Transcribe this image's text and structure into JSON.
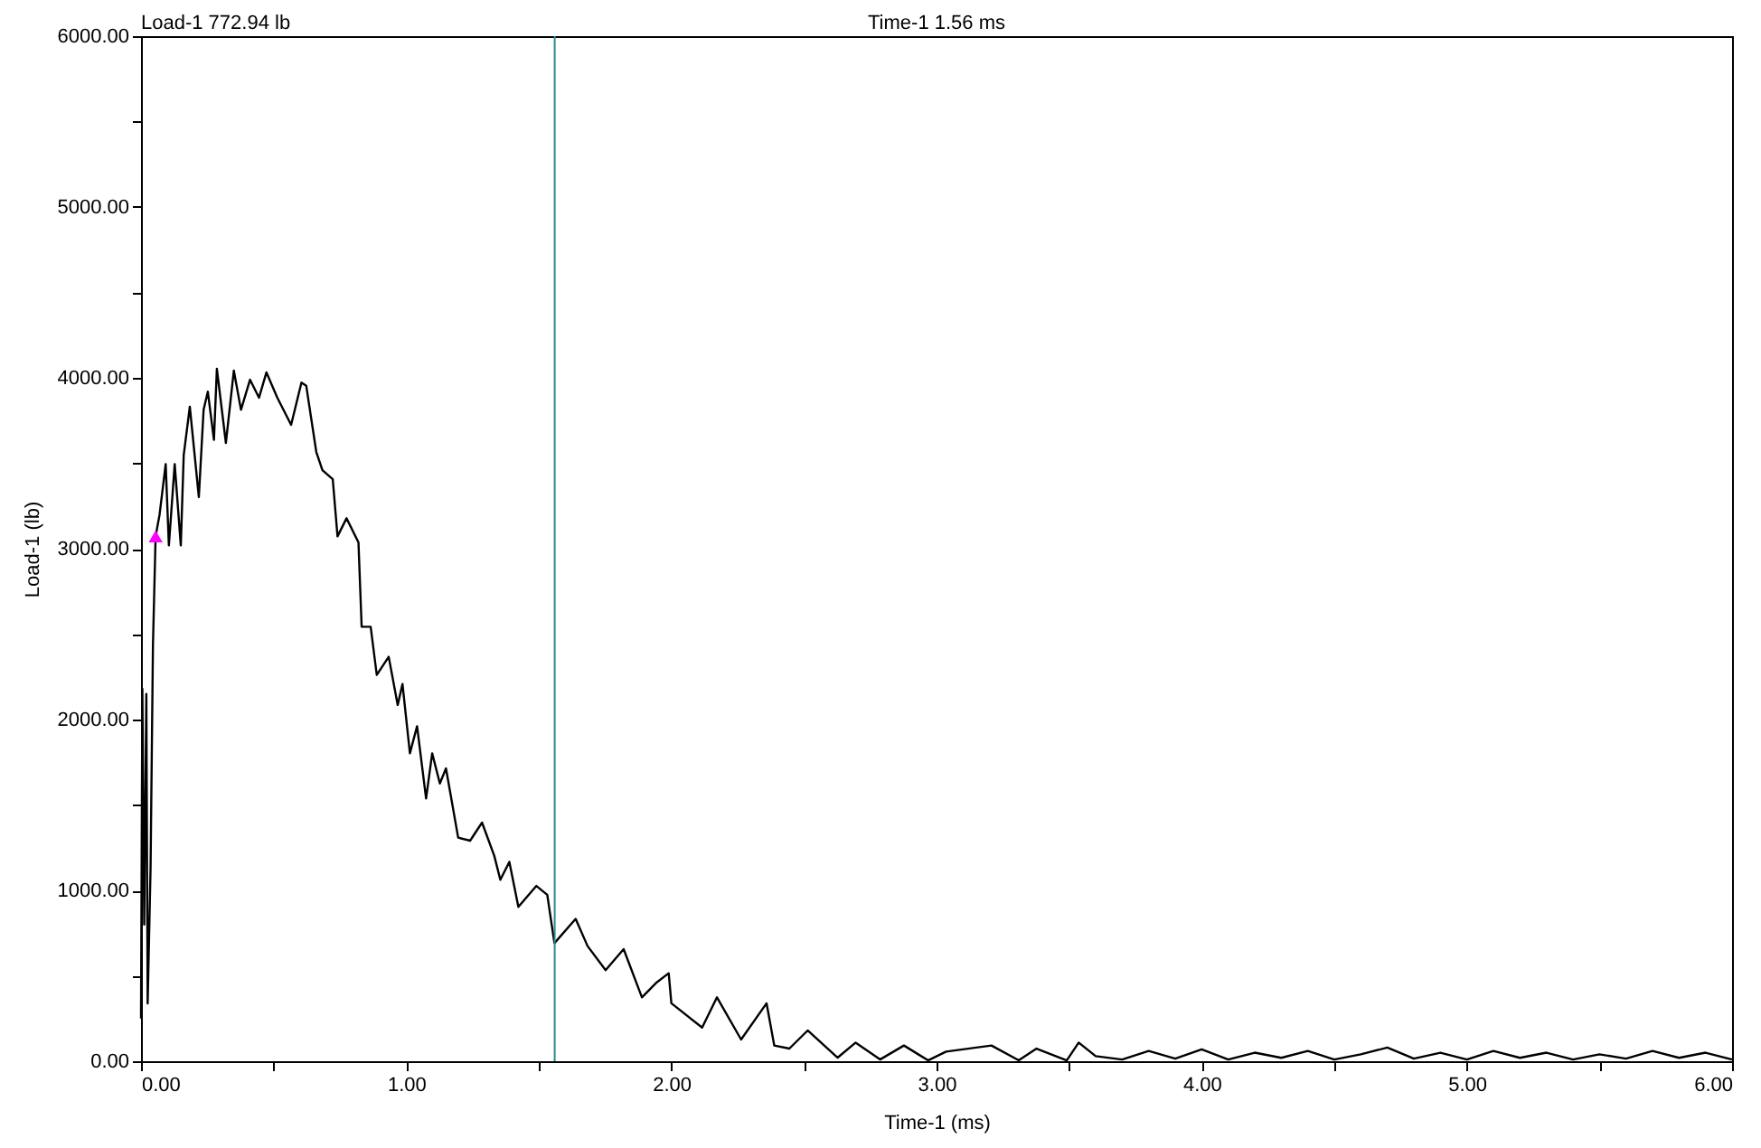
{
  "chart_data": {
    "type": "line",
    "xlabel": "Time-1 (ms)",
    "ylabel": "Load-1 (lb)",
    "annotations": [
      "Load-1  772.94 lb",
      "Time-1  1.56 ms"
    ],
    "xlim": [
      0,
      6
    ],
    "ylim": [
      0,
      6000
    ],
    "xticks": [
      {
        "value": 0,
        "label": "0.00"
      },
      {
        "value": 0.5,
        "label": null
      },
      {
        "value": 1,
        "label": "1.00"
      },
      {
        "value": 1.5,
        "label": null
      },
      {
        "value": 2,
        "label": "2.00"
      },
      {
        "value": 2.5,
        "label": null
      },
      {
        "value": 3,
        "label": "3.00"
      },
      {
        "value": 3.5,
        "label": null
      },
      {
        "value": 4,
        "label": "4.00"
      },
      {
        "value": 4.5,
        "label": null
      },
      {
        "value": 5,
        "label": "5.00"
      },
      {
        "value": 5.5,
        "label": null
      },
      {
        "value": 6,
        "label": "6.00"
      }
    ],
    "yticks": [
      {
        "value": 0,
        "label": "0.00"
      },
      {
        "value": 500,
        "label": null
      },
      {
        "value": 1000,
        "label": "1000.00"
      },
      {
        "value": 1500,
        "label": null
      },
      {
        "value": 2000,
        "label": "2000.00"
      },
      {
        "value": 2500,
        "label": null
      },
      {
        "value": 3000,
        "label": "3000.00"
      },
      {
        "value": 3500,
        "label": null
      },
      {
        "value": 4000,
        "label": "4000.00"
      },
      {
        "value": 4500,
        "label": null
      },
      {
        "value": 5000,
        "label": "5000.00"
      },
      {
        "value": 5500,
        "label": null
      },
      {
        "value": 6000,
        "label": "6000.00"
      }
    ],
    "grid": false,
    "ref_lines": [
      {
        "axis": "x",
        "value": 1.56,
        "color": "#2e8b8b"
      }
    ],
    "series": [
      {
        "color": "#000000",
        "x": [
          0,
          0.005,
          0.012,
          0.02,
          0.025,
          0.036,
          0.045,
          0.055,
          0.07,
          0.093,
          0.105,
          0.127,
          0.15,
          0.161,
          0.184,
          0.218,
          0.236,
          0.252,
          0.275,
          0.286,
          0.32,
          0.35,
          0.377,
          0.411,
          0.445,
          0.473,
          0.514,
          0.566,
          0.605,
          0.623,
          0.661,
          0.684,
          0.723,
          0.741,
          0.775,
          0.82,
          0.832,
          0.866,
          0.889,
          0.934,
          0.968,
          0.986,
          1.014,
          1.041,
          1.075,
          1.098,
          1.127,
          1.15,
          1.196,
          1.241,
          1.286,
          1.332,
          1.355,
          1.389,
          1.423,
          1.491,
          1.532,
          1.559,
          1.639,
          1.684,
          1.752,
          1.82,
          1.889,
          1.945,
          1.99,
          2.0,
          2.116,
          2.172,
          2.263,
          2.359,
          2.388,
          2.445,
          2.514,
          2.627,
          2.695,
          2.787,
          2.877,
          2.968,
          3.036,
          3.207,
          3.31,
          3.377,
          3.491,
          3.536,
          3.6,
          3.7,
          3.8,
          3.9,
          4.0,
          4.1,
          4.2,
          4.3,
          4.4,
          4.5,
          4.6,
          4.7,
          4.8,
          4.9,
          5.0,
          5.1,
          5.2,
          5.3,
          5.4,
          5.5,
          5.6,
          5.7,
          5.8,
          5.9,
          6.0
        ],
        "values": [
          250,
          2180,
          800,
          2150,
          339,
          1132,
          2437,
          3072,
          3200,
          3495,
          3019,
          3495,
          3019,
          3548,
          3831,
          3302,
          3813,
          3919,
          3637,
          4053,
          3619,
          4042,
          3813,
          3989,
          3884,
          4032,
          3884,
          3725,
          3972,
          3954,
          3566,
          3460,
          3407,
          3072,
          3178,
          3037,
          2543,
          2543,
          2261,
          2367,
          2085,
          2208,
          1802,
          1961,
          1538,
          1802,
          1626,
          1714,
          1309,
          1291,
          1397,
          1203,
          1062,
          1167,
          903,
          1026,
          974,
          691,
          833,
          674,
          533,
          656,
          374,
          462,
          515,
          339,
          197,
          374,
          127,
          339,
          92,
          74,
          180,
          21,
          109,
          10,
          92,
          5,
          56,
          92,
          5,
          74,
          5,
          109,
          30,
          10,
          60,
          15,
          70,
          10,
          50,
          20,
          60,
          10,
          40,
          80,
          15,
          50,
          10,
          60,
          20,
          50,
          10,
          40,
          15,
          60,
          20,
          50,
          10
        ]
      },
      {
        "type": "scatter",
        "color": "#ff00ff",
        "marker": "triangle",
        "x": [
          0.055
        ],
        "values": [
          3072
        ]
      }
    ]
  }
}
